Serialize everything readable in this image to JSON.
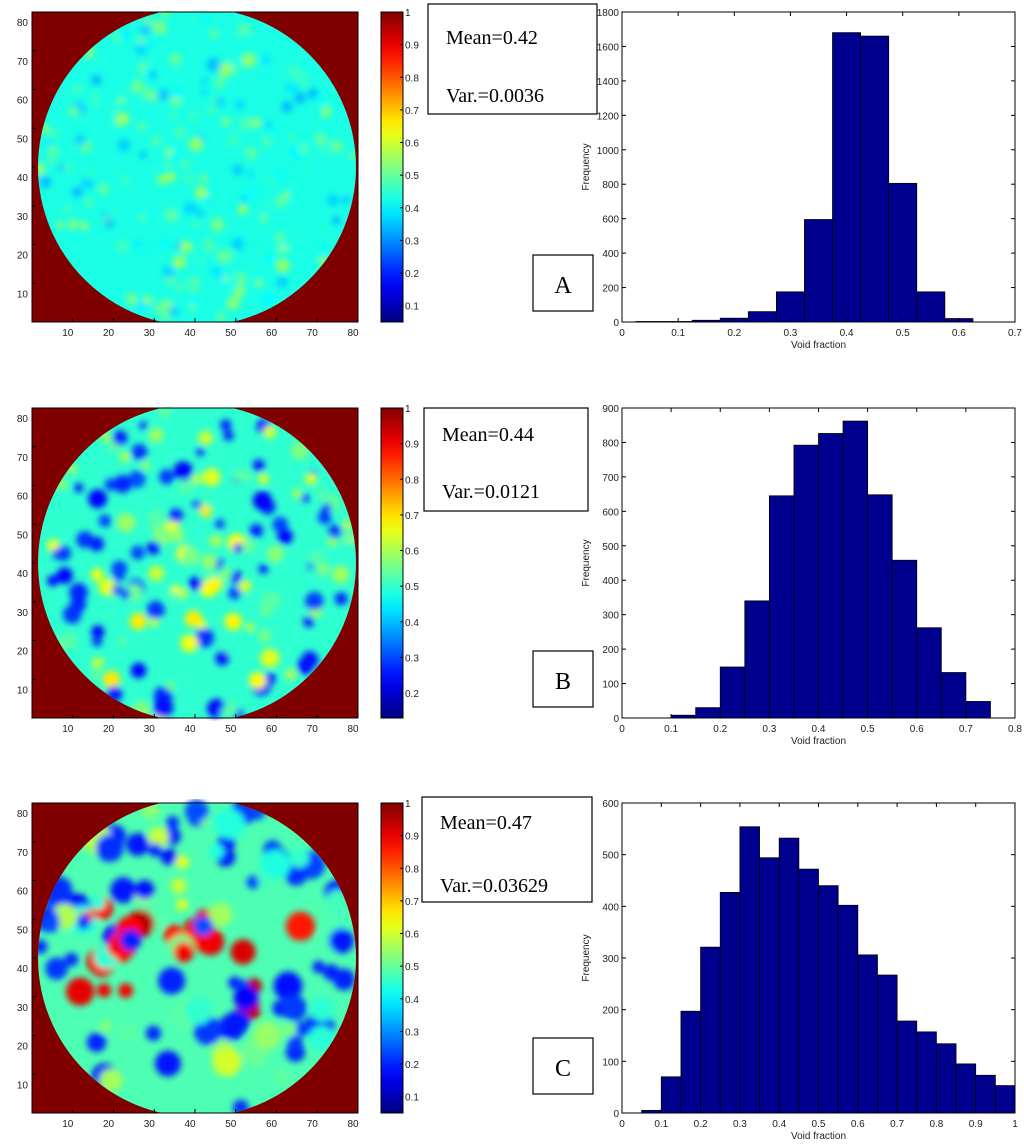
{
  "panels": [
    {
      "letter": "A",
      "stats": {
        "mean": "Mean=0.42",
        "var": "Var.=0.0036"
      },
      "map": {
        "x_ticks": [
          "10",
          "20",
          "30",
          "40",
          "50",
          "60",
          "70",
          "80"
        ],
        "y_ticks": [
          "10",
          "20",
          "30",
          "40",
          "50",
          "60",
          "70",
          "80"
        ],
        "style": "uniform"
      },
      "colorbar": {
        "ticks": [
          "0.1",
          "0.2",
          "0.3",
          "0.4",
          "0.5",
          "0.6",
          "0.7",
          "0.8",
          "0.9",
          "1"
        ]
      }
    },
    {
      "letter": "B",
      "stats": {
        "mean": "Mean=0.44",
        "var": "Var.=0.0121"
      },
      "map": {
        "x_ticks": [
          "10",
          "20",
          "30",
          "40",
          "50",
          "60",
          "70",
          "80"
        ],
        "y_ticks": [
          "10",
          "20",
          "30",
          "40",
          "50",
          "60",
          "70",
          "80"
        ],
        "style": "mixed"
      },
      "colorbar": {
        "ticks": [
          "0.2",
          "0.3",
          "0.4",
          "0.5",
          "0.6",
          "0.7",
          "0.8",
          "0.9",
          "1"
        ]
      }
    },
    {
      "letter": "C",
      "stats": {
        "mean": "Mean=0.47",
        "var": "Var.=0.03629"
      },
      "map": {
        "x_ticks": [
          "10",
          "20",
          "30",
          "40",
          "50",
          "60",
          "70",
          "80"
        ],
        "y_ticks": [
          "10",
          "20",
          "30",
          "40",
          "50",
          "60",
          "70",
          "80"
        ],
        "style": "heterogeneous"
      },
      "colorbar": {
        "ticks": [
          "0.1",
          "0.2",
          "0.3",
          "0.4",
          "0.5",
          "0.6",
          "0.7",
          "0.8",
          "0.9",
          "1"
        ]
      }
    }
  ],
  "colors": {
    "bar_fill": "#00008f",
    "bar_edge": "#000000",
    "outside_domain": "#800000"
  },
  "chart_data": [
    {
      "type": "bar",
      "xlabel": "Void fraction",
      "ylabel": "Frequency",
      "xlim": [
        0,
        0.7
      ],
      "ylim": [
        0,
        1800
      ],
      "x_ticks": [
        "0",
        "0.1",
        "0.2",
        "0.3",
        "0.4",
        "0.5",
        "0.6",
        "0.7"
      ],
      "y_ticks": [
        "0",
        "200",
        "400",
        "600",
        "800",
        "1000",
        "1200",
        "1400",
        "1600",
        "1800"
      ],
      "bin_width": 0.05,
      "bin_centers": [
        0.05,
        0.1,
        0.15,
        0.2,
        0.25,
        0.3,
        0.35,
        0.4,
        0.45,
        0.5,
        0.55,
        0.6
      ],
      "values": [
        3,
        3,
        10,
        22,
        60,
        175,
        595,
        1680,
        1660,
        805,
        175,
        20
      ]
    },
    {
      "type": "bar",
      "xlabel": "Void fraction",
      "ylabel": "Frequency",
      "xlim": [
        0,
        0.8
      ],
      "ylim": [
        0,
        900
      ],
      "x_ticks": [
        "0",
        "0.1",
        "0.2",
        "0.3",
        "0.4",
        "0.5",
        "0.6",
        "0.7",
        "0.8"
      ],
      "y_ticks": [
        "0",
        "100",
        "200",
        "300",
        "400",
        "500",
        "600",
        "700",
        "800",
        "900"
      ],
      "bin_width": 0.05,
      "bin_centers": [
        0.125,
        0.175,
        0.225,
        0.275,
        0.325,
        0.375,
        0.425,
        0.475,
        0.525,
        0.575,
        0.625,
        0.675,
        0.725
      ],
      "values": [
        8,
        30,
        148,
        340,
        645,
        792,
        826,
        862,
        648,
        458,
        262,
        132,
        48
      ]
    },
    {
      "type": "bar",
      "xlabel": "Void fraction",
      "ylabel": "Frequency",
      "xlim": [
        0,
        1
      ],
      "ylim": [
        0,
        600
      ],
      "x_ticks": [
        "0",
        "0.1",
        "0.2",
        "0.3",
        "0.4",
        "0.5",
        "0.6",
        "0.7",
        "0.8",
        "0.9",
        "1"
      ],
      "y_ticks": [
        "0",
        "100",
        "200",
        "300",
        "400",
        "500",
        "600"
      ],
      "bin_width": 0.05,
      "bin_centers": [
        0.075,
        0.125,
        0.175,
        0.225,
        0.275,
        0.325,
        0.375,
        0.425,
        0.475,
        0.525,
        0.575,
        0.625,
        0.675,
        0.725,
        0.775,
        0.825,
        0.875,
        0.925,
        0.975
      ],
      "values": [
        5,
        70,
        197,
        321,
        427,
        554,
        494,
        532,
        472,
        440,
        402,
        306,
        267,
        178,
        157,
        134,
        95,
        73,
        53
      ]
    }
  ]
}
